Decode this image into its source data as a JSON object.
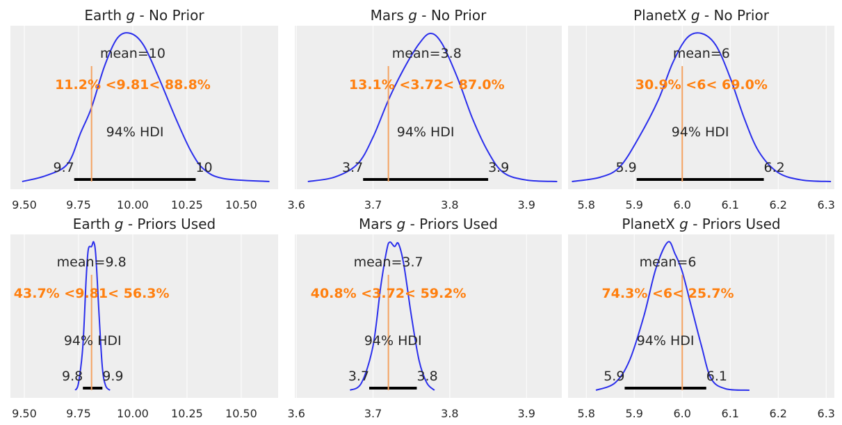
{
  "chart_data": [
    {
      "type": "line",
      "title": {
        "pre": "Earth ",
        "var": "g",
        "post": " - No Prior"
      },
      "xlim": [
        9.436,
        10.67
      ],
      "ticks": [
        9.5,
        9.75,
        10.0,
        10.25,
        10.5
      ],
      "tick_labels": [
        "9.50",
        "9.75",
        "10.00",
        "10.25",
        "10.50"
      ],
      "density": [
        [
          9.49,
          0
        ],
        [
          9.6,
          0.04
        ],
        [
          9.7,
          0.12
        ],
        [
          9.76,
          0.33
        ],
        [
          9.81,
          0.5
        ],
        [
          9.87,
          0.78
        ],
        [
          9.93,
          0.97
        ],
        [
          9.99,
          1
        ],
        [
          10.05,
          0.92
        ],
        [
          10.12,
          0.7
        ],
        [
          10.2,
          0.42
        ],
        [
          10.27,
          0.2
        ],
        [
          10.33,
          0.08
        ],
        [
          10.42,
          0.02
        ],
        [
          10.63,
          0
        ]
      ],
      "mean": 10.0,
      "mean_label": "mean=10",
      "ref_value": 9.81,
      "ref_label": "11.2% <9.81< 88.8%",
      "hdi": [
        9.73,
        10.29
      ],
      "hdi_label": "94% HDI",
      "hdi_low_label": "9.7",
      "hdi_high_label": "10"
    },
    {
      "type": "line",
      "title": {
        "pre": "Mars ",
        "var": "g",
        "post": " - No Prior"
      },
      "xlim": [
        3.598,
        3.946
      ],
      "ticks": [
        3.6,
        3.7,
        3.8,
        3.9
      ],
      "tick_labels": [
        "3.6",
        "3.7",
        "3.8",
        "3.9"
      ],
      "density": [
        [
          3.615,
          0
        ],
        [
          3.65,
          0.03
        ],
        [
          3.68,
          0.12
        ],
        [
          3.7,
          0.3
        ],
        [
          3.72,
          0.55
        ],
        [
          3.74,
          0.76
        ],
        [
          3.76,
          0.93
        ],
        [
          3.775,
          1
        ],
        [
          3.79,
          0.93
        ],
        [
          3.81,
          0.7
        ],
        [
          3.83,
          0.42
        ],
        [
          3.85,
          0.2
        ],
        [
          3.87,
          0.06
        ],
        [
          3.9,
          0.01
        ],
        [
          3.94,
          0
        ]
      ],
      "mean": 3.77,
      "mean_label": "mean=3.8",
      "ref_value": 3.72,
      "ref_label": "13.1% <3.72< 87.0%",
      "hdi": [
        3.687,
        3.85
      ],
      "hdi_label": "94% HDI",
      "hdi_low_label": "3.7",
      "hdi_high_label": "3.9"
    },
    {
      "type": "line",
      "title": {
        "pre": "PlanetX ",
        "var": "g",
        "post": " - No Prior"
      },
      "xlim": [
        5.762,
        6.317
      ],
      "ticks": [
        5.8,
        5.9,
        6.0,
        6.1,
        6.2,
        6.3
      ],
      "tick_labels": [
        "5.8",
        "5.9",
        "6.0",
        "6.1",
        "6.2",
        "6.3"
      ],
      "density": [
        [
          5.77,
          0
        ],
        [
          5.83,
          0.03
        ],
        [
          5.87,
          0.1
        ],
        [
          5.91,
          0.3
        ],
        [
          5.95,
          0.55
        ],
        [
          5.98,
          0.8
        ],
        [
          6.01,
          0.97
        ],
        [
          6.04,
          1
        ],
        [
          6.07,
          0.92
        ],
        [
          6.1,
          0.7
        ],
        [
          6.13,
          0.42
        ],
        [
          6.16,
          0.2
        ],
        [
          6.2,
          0.06
        ],
        [
          6.25,
          0.01
        ],
        [
          6.31,
          0
        ]
      ],
      "mean": 6.04,
      "mean_label": "mean=6",
      "ref_value": 6.0,
      "ref_label": "30.9% <6< 69.0%",
      "hdi": [
        5.905,
        6.17
      ],
      "hdi_label": "94% HDI",
      "hdi_low_label": "5.9",
      "hdi_high_label": "6.2"
    },
    {
      "type": "line",
      "title": {
        "pre": "Earth ",
        "var": "g",
        "post": " - Priors Used"
      },
      "xlim": [
        9.436,
        10.67
      ],
      "ticks": [
        9.5,
        9.75,
        10.0,
        10.25,
        10.5
      ],
      "tick_labels": [
        "9.50",
        "9.75",
        "10.00",
        "10.25",
        "10.50"
      ],
      "density": [
        [
          9.735,
          0
        ],
        [
          9.75,
          0.05
        ],
        [
          9.77,
          0.3
        ],
        [
          9.785,
          0.75
        ],
        [
          9.795,
          0.95
        ],
        [
          9.81,
          0.97
        ],
        [
          9.82,
          1
        ],
        [
          9.83,
          0.9
        ],
        [
          9.845,
          0.5
        ],
        [
          9.86,
          0.15
        ],
        [
          9.875,
          0.03
        ],
        [
          9.895,
          0
        ]
      ],
      "mean": 9.81,
      "mean_label": "mean=9.8",
      "ref_value": 9.81,
      "ref_label": "43.7% <9.81< 56.3%",
      "hdi": [
        9.77,
        9.86
      ],
      "hdi_label": "94% HDI",
      "hdi_low_label": "9.8",
      "hdi_high_label": "9.9"
    },
    {
      "type": "line",
      "title": {
        "pre": "Mars ",
        "var": "g",
        "post": " - Priors Used"
      },
      "xlim": [
        3.598,
        3.946
      ],
      "ticks": [
        3.6,
        3.7,
        3.8,
        3.9
      ],
      "tick_labels": [
        "3.6",
        "3.7",
        "3.8",
        "3.9"
      ],
      "density": [
        [
          3.67,
          0
        ],
        [
          3.685,
          0.05
        ],
        [
          3.7,
          0.3
        ],
        [
          3.71,
          0.7
        ],
        [
          3.718,
          0.95
        ],
        [
          3.722,
          1
        ],
        [
          3.728,
          0.97
        ],
        [
          3.733,
          0.99
        ],
        [
          3.74,
          0.85
        ],
        [
          3.75,
          0.5
        ],
        [
          3.76,
          0.2
        ],
        [
          3.77,
          0.05
        ],
        [
          3.78,
          0
        ]
      ],
      "mean": 3.72,
      "mean_label": "mean=3.7",
      "ref_value": 3.72,
      "ref_label": "40.8% <3.72< 59.2%",
      "hdi": [
        3.695,
        3.757
      ],
      "hdi_label": "94% HDI",
      "hdi_low_label": "3.7",
      "hdi_high_label": "3.8"
    },
    {
      "type": "line",
      "title": {
        "pre": "PlanetX ",
        "var": "g",
        "post": " - Priors Used"
      },
      "xlim": [
        5.762,
        6.317
      ],
      "ticks": [
        5.8,
        5.9,
        6.0,
        6.1,
        6.2,
        6.3
      ],
      "tick_labels": [
        "5.8",
        "5.9",
        "6.0",
        "6.1",
        "6.2",
        "6.3"
      ],
      "density": [
        [
          5.82,
          0
        ],
        [
          5.86,
          0.05
        ],
        [
          5.89,
          0.2
        ],
        [
          5.92,
          0.5
        ],
        [
          5.945,
          0.82
        ],
        [
          5.97,
          1
        ],
        [
          5.985,
          0.92
        ],
        [
          6.0,
          0.8
        ],
        [
          6.02,
          0.55
        ],
        [
          6.04,
          0.3
        ],
        [
          6.06,
          0.08
        ],
        [
          6.09,
          0.01
        ],
        [
          6.14,
          0
        ]
      ],
      "mean": 5.97,
      "mean_label": "mean=6",
      "ref_value": 6.0,
      "ref_label": "74.3% <6< 25.7%",
      "hdi": [
        5.88,
        6.05
      ],
      "hdi_label": "94% HDI",
      "hdi_low_label": "5.9",
      "hdi_high_label": "6.1"
    }
  ],
  "colors": {
    "background": "#eeeeee",
    "grid": "#ffffff",
    "density": "#2a2eec",
    "reference": "#ff7f0e",
    "reference_line": "#f4a261",
    "hdi": "#000000",
    "text": "#262626"
  },
  "grid": "x"
}
